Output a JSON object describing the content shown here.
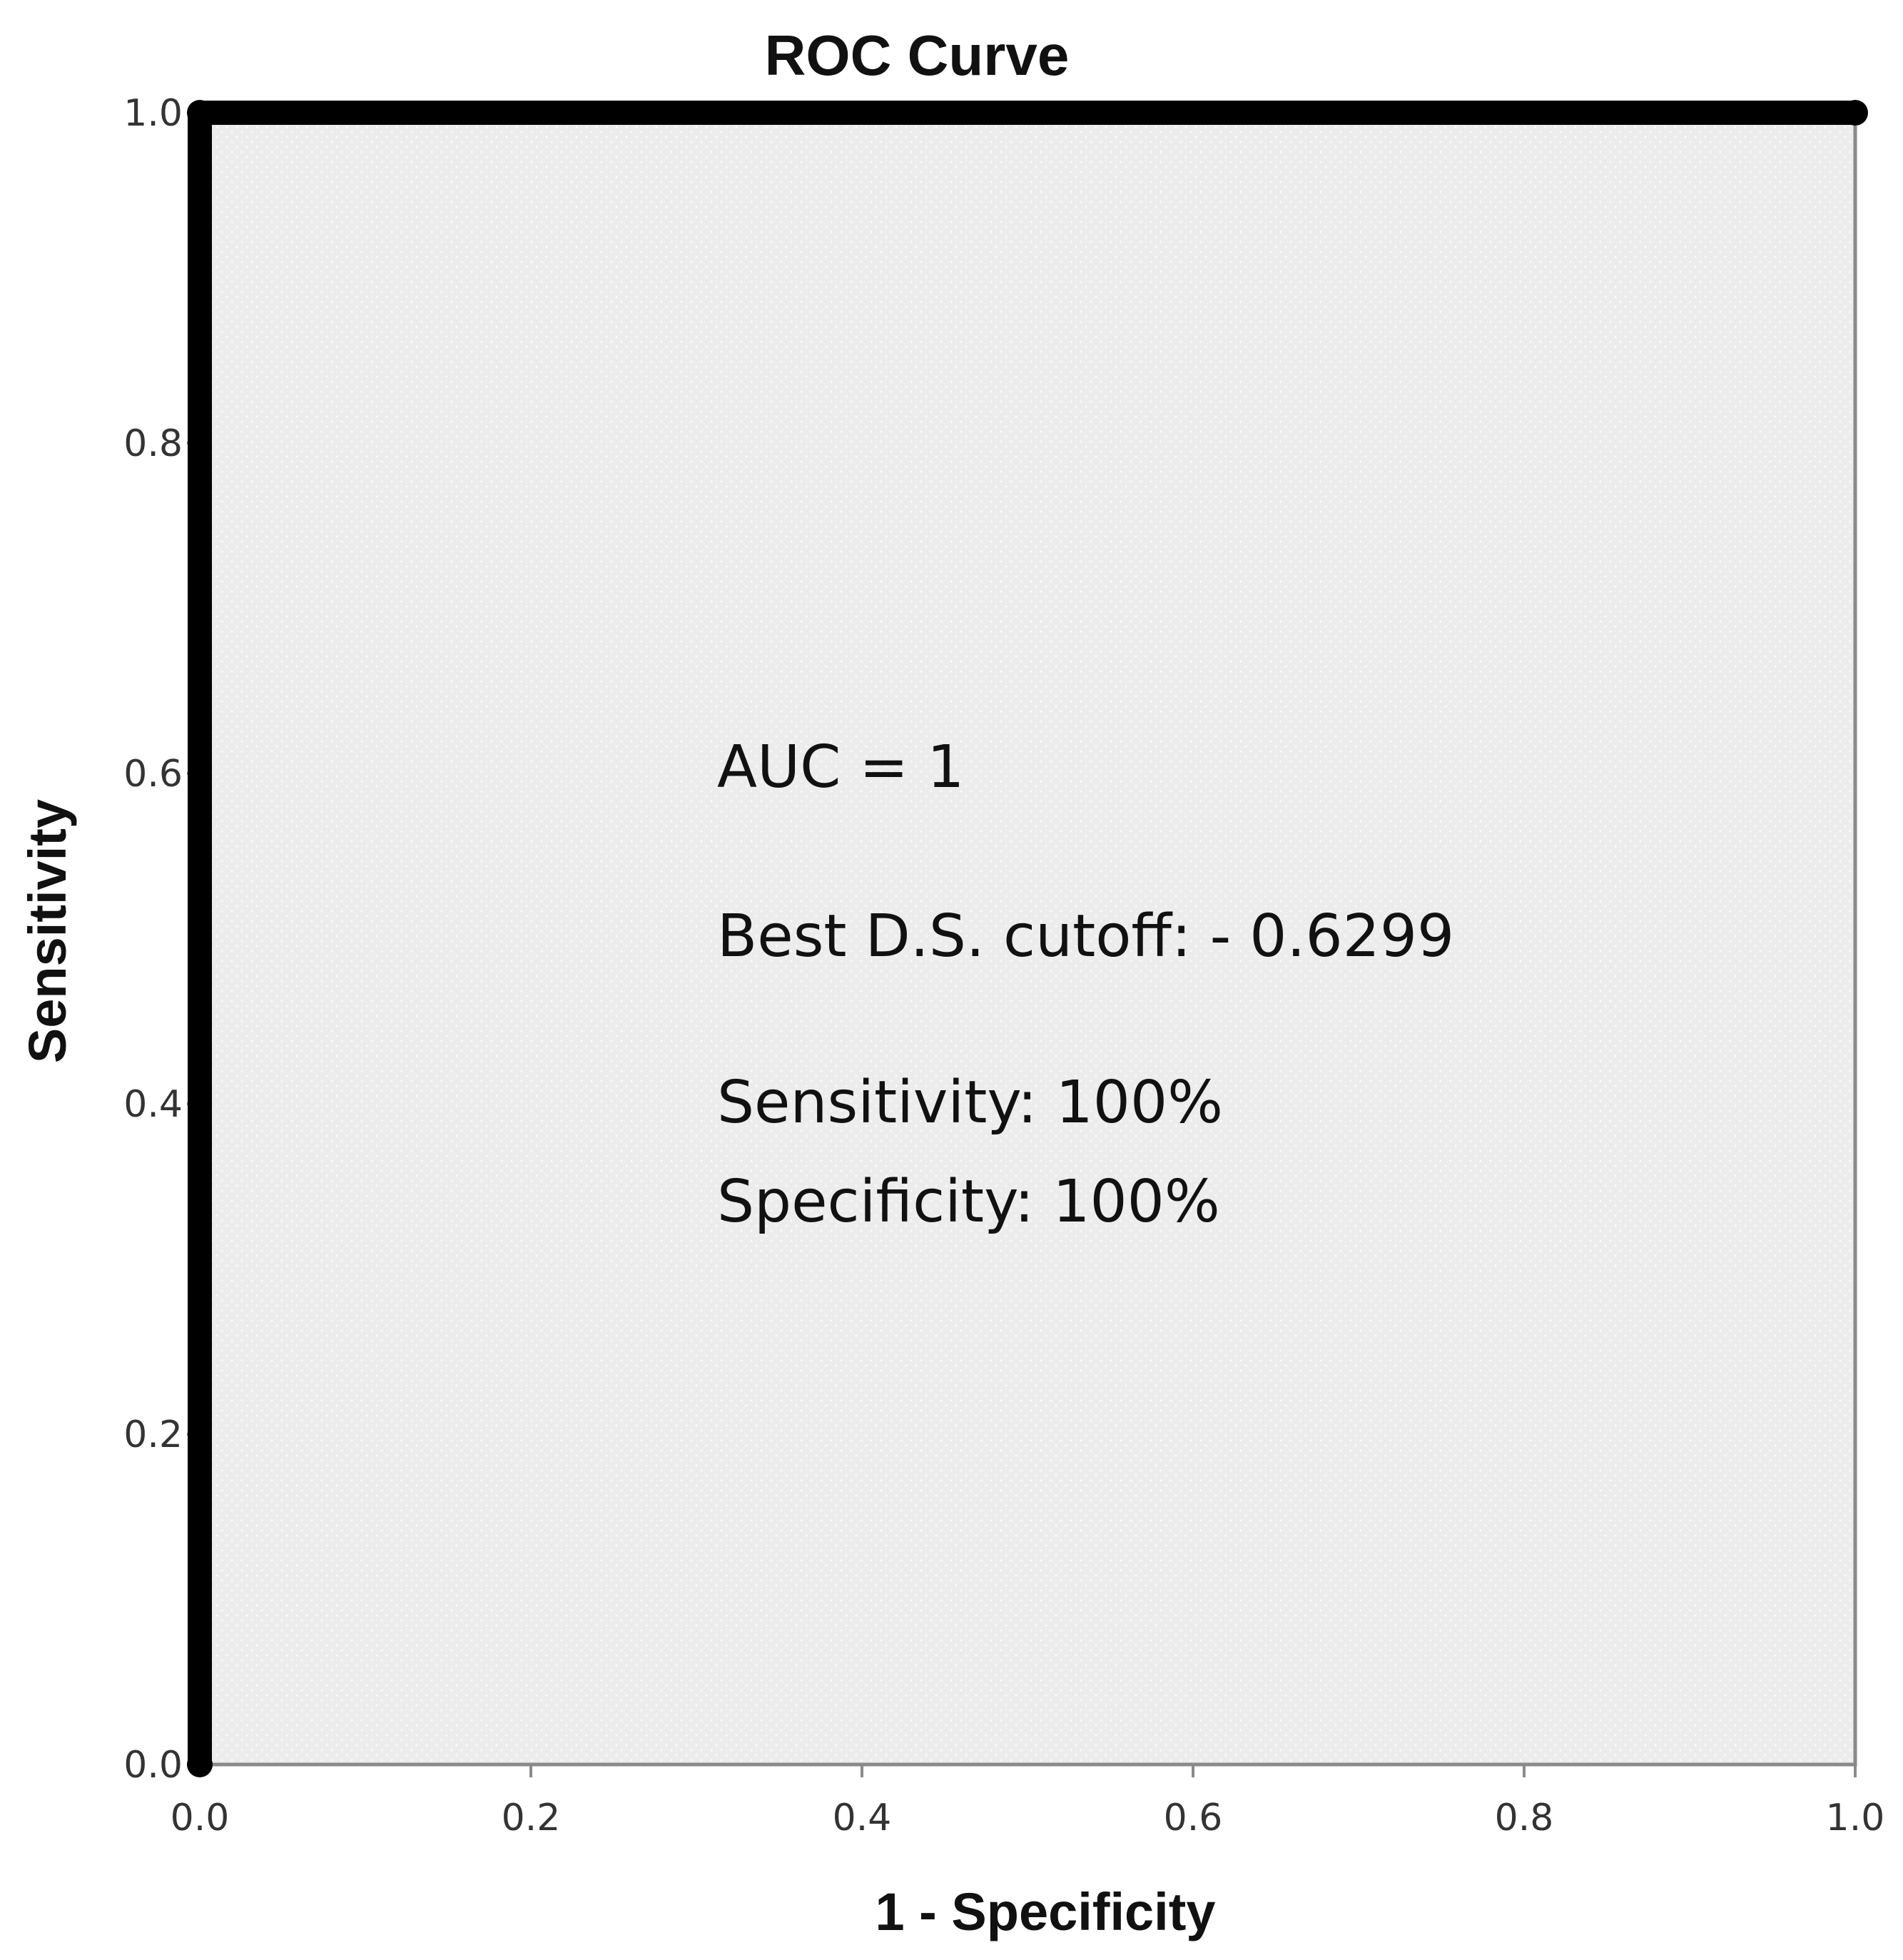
{
  "chart_data": {
    "type": "line",
    "title": "ROC Curve",
    "xlabel": "1 - Specificity",
    "ylabel": "Sensitivity",
    "xlim": [
      0.0,
      1.0
    ],
    "ylim": [
      0.0,
      1.0
    ],
    "x_ticks": [
      "0.0",
      "0.2",
      "0.4",
      "0.6",
      "0.8",
      "1.0"
    ],
    "y_ticks": [
      "0.0",
      "0.2",
      "0.4",
      "0.6",
      "0.8",
      "1.0"
    ],
    "grid": false,
    "series": [
      {
        "points": [
          {
            "x": 0.0,
            "y": 0.0
          },
          {
            "x": 0.0,
            "y": 1.0
          },
          {
            "x": 1.0,
            "y": 1.0
          }
        ]
      }
    ],
    "annotations": [
      "AUC = 1",
      "Best D.S. cutoff: - 0.6299",
      "Sensitivity: 100%",
      "Specificity: 100%"
    ],
    "colors": {
      "plot_background": "#ececec",
      "curve": "#000000",
      "frame": "#8a8a8a"
    }
  }
}
